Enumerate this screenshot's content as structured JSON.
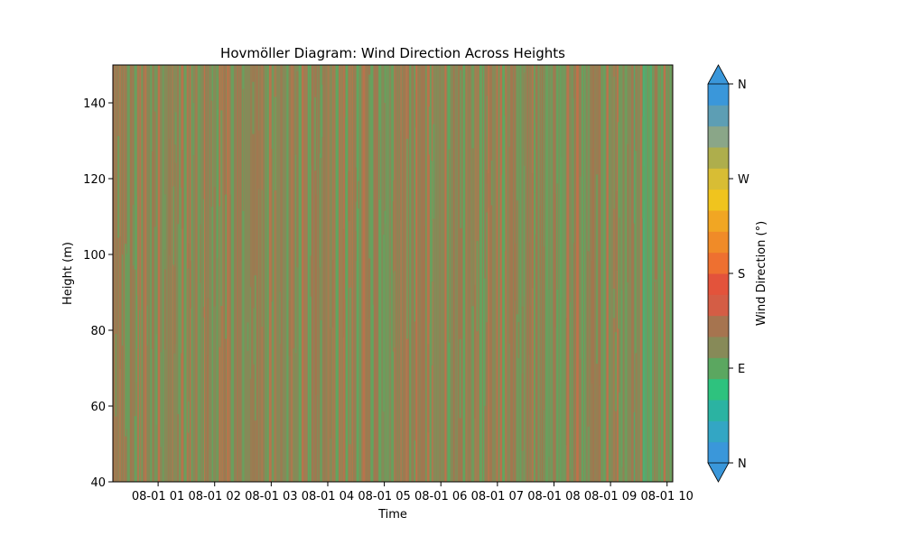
{
  "chart_data": {
    "type": "heatmap",
    "title": "Hovmöller Diagram: Wind Direction Across Heights",
    "xlabel": "Time",
    "ylabel": "Height (m)",
    "ylim": [
      40,
      150
    ],
    "y_ticks": [
      40,
      60,
      80,
      100,
      120,
      140
    ],
    "x_ticks": [
      {
        "label": "08-01 01",
        "day": 1
      },
      {
        "label": "08-01 02",
        "day": 2
      },
      {
        "label": "08-01 03",
        "day": 3
      },
      {
        "label": "08-01 04",
        "day": 4
      },
      {
        "label": "08-01 05",
        "day": 5
      },
      {
        "label": "08-01 06",
        "day": 6
      },
      {
        "label": "08-01 07",
        "day": 7
      },
      {
        "label": "08-01 08",
        "day": 8
      },
      {
        "label": "08-01 09",
        "day": 9
      },
      {
        "label": "08-01 10",
        "day": 10
      }
    ],
    "xlim_days": [
      0.2,
      10.1
    ],
    "colorbar": {
      "label": "Wind Direction (°)",
      "range": [
        0,
        360
      ],
      "extend": "both",
      "ticks": [
        {
          "label": "N",
          "value": 0
        },
        {
          "label": "E",
          "value": 90
        },
        {
          "label": "S",
          "value": 180
        },
        {
          "label": "W",
          "value": 270
        },
        {
          "label": "N",
          "value": 360
        }
      ],
      "levels": [
        "#3a97da",
        "#33a6c4",
        "#2bb3a2",
        "#2ec27e",
        "#5ba760",
        "#878a58",
        "#a6744f",
        "#d45d45",
        "#e3533b",
        "#ee7030",
        "#f08b28",
        "#f1a623",
        "#f0c41e",
        "#d8bd34",
        "#aeae4c",
        "#8aa688",
        "#5d9eb4",
        "#3a97da"
      ],
      "extend_low_color": "#3a97da",
      "extend_high_color": "#3a97da"
    },
    "field_colors": {
      "base": "#868a58",
      "green": "#5ea860",
      "bright_green": "#2ec27e",
      "brown": "#a6744f",
      "orange_red": "#c46e4a"
    }
  }
}
